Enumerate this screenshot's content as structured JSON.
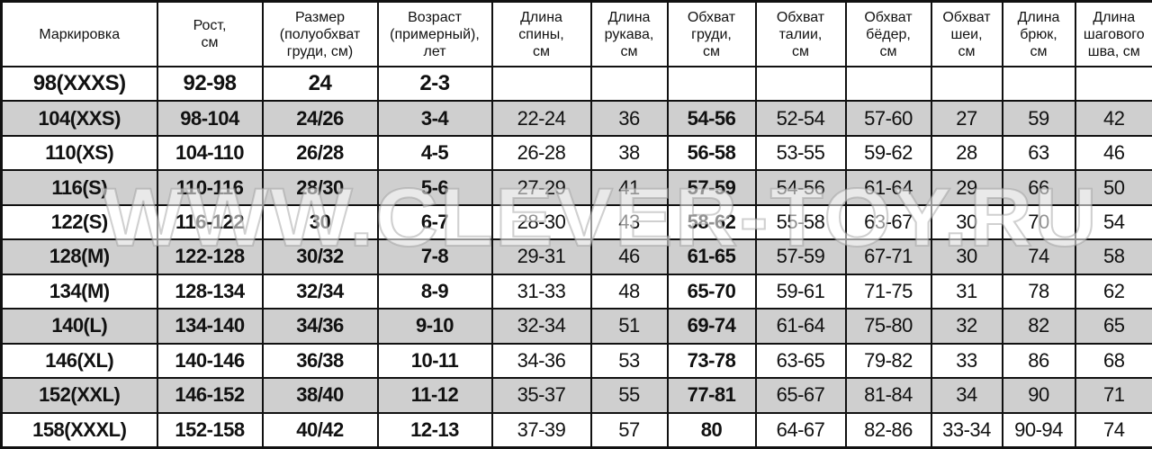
{
  "headers": [
    "Маркировка",
    "Рост,\nсм",
    "Размер\n(полуобхват\nгруди, см)",
    "Возраст\n(примерный),\nлет",
    "Длина\nспины,\nсм",
    "Длина\nрукава,\nсм",
    "Обхват\nгруди,\nсм",
    "Обхват\nталии,\nсм",
    "Обхват\nбёдер,\nсм",
    "Обхват\nшеи,\nсм",
    "Длина\nбрюк,\nсм",
    "Длина\nшагового\nшва, см"
  ],
  "rows": [
    [
      "98(XXXS)",
      "92-98",
      "24",
      "2-3",
      "",
      "",
      "",
      "",
      "",
      "",
      "",
      ""
    ],
    [
      "104(XXS)",
      "98-104",
      "24/26",
      "3-4",
      "22-24",
      "36",
      "54-56",
      "52-54",
      "57-60",
      "27",
      "59",
      "42"
    ],
    [
      "110(XS)",
      "104-110",
      "26/28",
      "4-5",
      "26-28",
      "38",
      "56-58",
      "53-55",
      "59-62",
      "28",
      "63",
      "46"
    ],
    [
      "116(S)",
      "110-116",
      "28/30",
      "5-6",
      "27-29",
      "41",
      "57-59",
      "54-56",
      "61-64",
      "29",
      "66",
      "50"
    ],
    [
      "122(S)",
      "116-122",
      "30",
      "6-7",
      "28-30",
      "43",
      "58-62",
      "55-58",
      "63-67",
      "30",
      "70",
      "54"
    ],
    [
      "128(M)",
      "122-128",
      "30/32",
      "7-8",
      "29-31",
      "46",
      "61-65",
      "57-59",
      "67-71",
      "30",
      "74",
      "58"
    ],
    [
      "134(M)",
      "128-134",
      "32/34",
      "8-9",
      "31-33",
      "48",
      "65-70",
      "59-61",
      "71-75",
      "31",
      "78",
      "62"
    ],
    [
      "140(L)",
      "134-140",
      "34/36",
      "9-10",
      "32-34",
      "51",
      "69-74",
      "61-64",
      "75-80",
      "32",
      "82",
      "65"
    ],
    [
      "146(XL)",
      "140-146",
      "36/38",
      "10-11",
      "34-36",
      "53",
      "73-78",
      "63-65",
      "79-82",
      "33",
      "86",
      "68"
    ],
    [
      "152(XXL)",
      "146-152",
      "38/40",
      "11-12",
      "35-37",
      "55",
      "77-81",
      "65-67",
      "81-84",
      "34",
      "90",
      "71"
    ],
    [
      "158(XXXL)",
      "152-158",
      "40/42",
      "12-13",
      "37-39",
      "57",
      "80",
      "64-67",
      "82-86",
      "33-34",
      "90-94",
      "74"
    ]
  ],
  "watermark": "WWW.CLEVER-TOY.RU",
  "colors": {
    "shaded_row": "#cfcfcf",
    "border": "#111111"
  }
}
